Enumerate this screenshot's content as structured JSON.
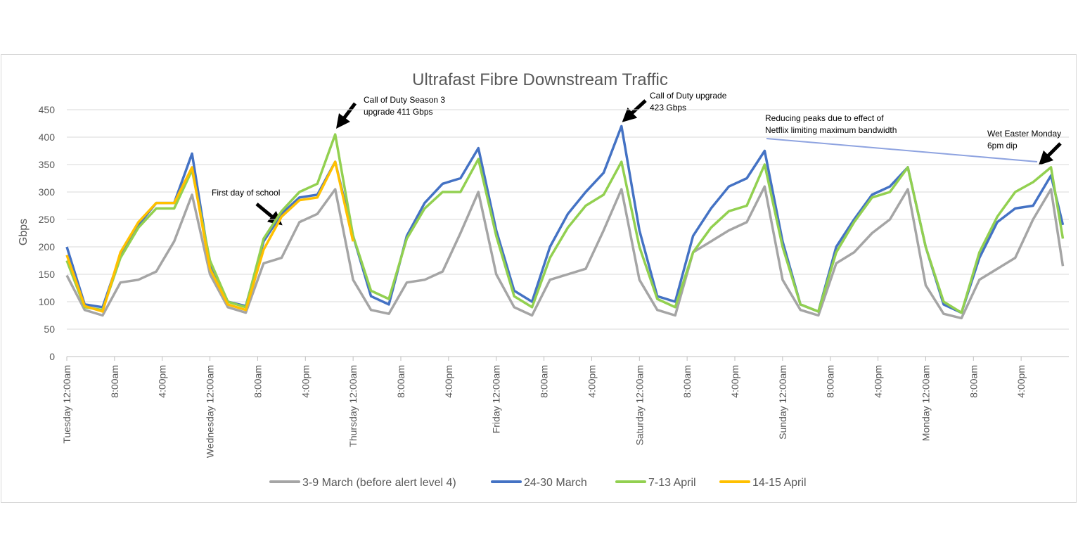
{
  "chart_data": {
    "type": "line",
    "title": "Ultrafast Fibre Downstream Traffic",
    "y_label": "Gbps",
    "x": [
      0,
      3,
      6,
      9,
      12,
      15,
      18,
      21,
      24,
      27,
      30,
      33,
      36,
      39,
      42,
      45,
      48,
      51,
      54,
      57,
      60,
      63,
      66,
      69,
      72,
      75,
      78,
      81,
      84,
      87,
      90,
      93,
      96,
      99,
      102,
      105,
      108,
      111,
      114,
      117,
      120,
      123,
      126,
      129,
      132,
      135,
      138,
      141,
      144,
      147,
      150,
      153,
      156,
      159,
      162,
      165,
      167
    ],
    "xlim": [
      0,
      168
    ],
    "xticks": [
      {
        "value": 0,
        "label": "Tuesday 12:00am"
      },
      {
        "value": 8,
        "label": "8:00am"
      },
      {
        "value": 16,
        "label": "4:00pm"
      },
      {
        "value": 24,
        "label": "Wednesday 12:00am"
      },
      {
        "value": 32,
        "label": "8:00am"
      },
      {
        "value": 40,
        "label": "4:00pm"
      },
      {
        "value": 48,
        "label": "Thursday 12:00am"
      },
      {
        "value": 56,
        "label": "8:00am"
      },
      {
        "value": 64,
        "label": "4:00pm"
      },
      {
        "value": 72,
        "label": "Friday 12:00am"
      },
      {
        "value": 80,
        "label": "8:00am"
      },
      {
        "value": 88,
        "label": "4:00pm"
      },
      {
        "value": 96,
        "label": "Saturday 12:00am"
      },
      {
        "value": 104,
        "label": "8:00am"
      },
      {
        "value": 112,
        "label": "4:00pm"
      },
      {
        "value": 120,
        "label": "Sunday 12:00am"
      },
      {
        "value": 128,
        "label": "8:00am"
      },
      {
        "value": 136,
        "label": "4:00pm"
      },
      {
        "value": 144,
        "label": "Monday 12:00am"
      },
      {
        "value": 152,
        "label": "8:00am"
      },
      {
        "value": 160,
        "label": "4:00pm"
      }
    ],
    "ylim": [
      0,
      450
    ],
    "yticks": [
      0,
      50,
      100,
      150,
      200,
      250,
      300,
      350,
      400,
      450
    ],
    "grid": true,
    "legend": "bottom",
    "series": [
      {
        "name": "3-9 March (before alert level 4)",
        "color": "#a5a5a5",
        "values": [
          148,
          85,
          75,
          135,
          140,
          155,
          210,
          295,
          150,
          90,
          80,
          170,
          180,
          245,
          260,
          305,
          140,
          85,
          78,
          135,
          140,
          155,
          225,
          300,
          150,
          90,
          75,
          140,
          150,
          160,
          230,
          305,
          140,
          85,
          75,
          190,
          210,
          230,
          245,
          310,
          140,
          85,
          75,
          170,
          190,
          225,
          250,
          305,
          130,
          78,
          70,
          140,
          160,
          180,
          250,
          305,
          165
        ]
      },
      {
        "name": "24-30 March",
        "color": "#4472c4",
        "values": [
          200,
          95,
          90,
          185,
          240,
          280,
          280,
          370,
          165,
          100,
          92,
          210,
          260,
          290,
          295,
          355,
          220,
          110,
          95,
          220,
          280,
          315,
          325,
          380,
          230,
          120,
          100,
          200,
          260,
          300,
          335,
          420,
          230,
          110,
          100,
          220,
          270,
          310,
          325,
          375,
          210,
          95,
          82,
          200,
          250,
          295,
          310,
          345,
          200,
          95,
          80,
          180,
          245,
          270,
          275,
          330,
          240
        ]
      },
      {
        "name": "7-13 April",
        "color": "#92d050",
        "values": [
          175,
          90,
          85,
          180,
          235,
          270,
          270,
          340,
          175,
          100,
          90,
          215,
          265,
          300,
          315,
          405,
          220,
          120,
          105,
          215,
          270,
          300,
          300,
          360,
          220,
          110,
          90,
          180,
          235,
          275,
          295,
          355,
          200,
          105,
          90,
          190,
          235,
          265,
          275,
          350,
          200,
          95,
          82,
          190,
          245,
          290,
          300,
          345,
          200,
          100,
          80,
          190,
          255,
          300,
          318,
          345,
          215
        ]
      },
      {
        "name": "14-15 April",
        "color": "#ffc000",
        "values": [
          185,
          92,
          82,
          190,
          245,
          280,
          280,
          345,
          160,
          95,
          85,
          195,
          255,
          285,
          290,
          355,
          210,
          null,
          null,
          null,
          null,
          null,
          null,
          null,
          null,
          null,
          null,
          null,
          null,
          null,
          null,
          null,
          null,
          null,
          null,
          null,
          null,
          null,
          null,
          null,
          null,
          null,
          null,
          null,
          null,
          null,
          null,
          null,
          null,
          null,
          null,
          null,
          null,
          null,
          null,
          null,
          null
        ]
      }
    ],
    "annotations": [
      {
        "lines": [
          "First day of school"
        ]
      },
      {
        "lines": [
          "Call of Duty Season 3",
          "upgrade 411 Gbps"
        ]
      },
      {
        "lines": [
          "Call of Duty upgrade",
          "423 Gbps"
        ]
      },
      {
        "lines": [
          "Reducing peaks due to effect of",
          "Netflix limiting maximum bandwidth"
        ]
      },
      {
        "lines": [
          "Wet Easter Monday",
          "6pm dip"
        ]
      }
    ]
  }
}
